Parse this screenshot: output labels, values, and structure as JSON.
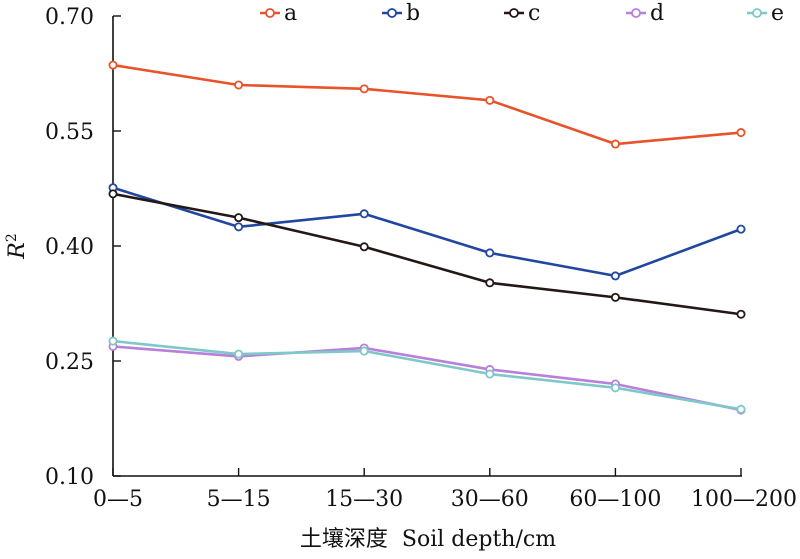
{
  "chart_data": {
    "type": "line",
    "xlabel": "土壤深度  Soil depth/cm",
    "ylabel": "R",
    "ylabel_superscript": "2",
    "categories": [
      "0—5",
      "5—15",
      "15—30",
      "30—60",
      "60—100",
      "100—200"
    ],
    "yticks": [
      "0.10",
      "0.25",
      "0.40",
      "0.55",
      "0.70"
    ],
    "ylim": [
      0.1,
      0.7
    ],
    "legend_position": "top",
    "grid": false,
    "series": [
      {
        "name": "a",
        "color": "#e8532a",
        "values": [
          0.636,
          0.61,
          0.605,
          0.59,
          0.533,
          0.548
        ]
      },
      {
        "name": "b",
        "color": "#2147a1",
        "values": [
          0.476,
          0.425,
          0.442,
          0.391,
          0.361,
          0.422
        ]
      },
      {
        "name": "c",
        "color": "#231815",
        "values": [
          0.468,
          0.437,
          0.399,
          0.352,
          0.333,
          0.311
        ]
      },
      {
        "name": "d",
        "color": "#b87fdc",
        "values": [
          0.269,
          0.256,
          0.267,
          0.239,
          0.22,
          0.186
        ]
      },
      {
        "name": "e",
        "color": "#7ec8c8",
        "values": [
          0.276,
          0.259,
          0.263,
          0.233,
          0.215,
          0.187
        ]
      }
    ]
  }
}
